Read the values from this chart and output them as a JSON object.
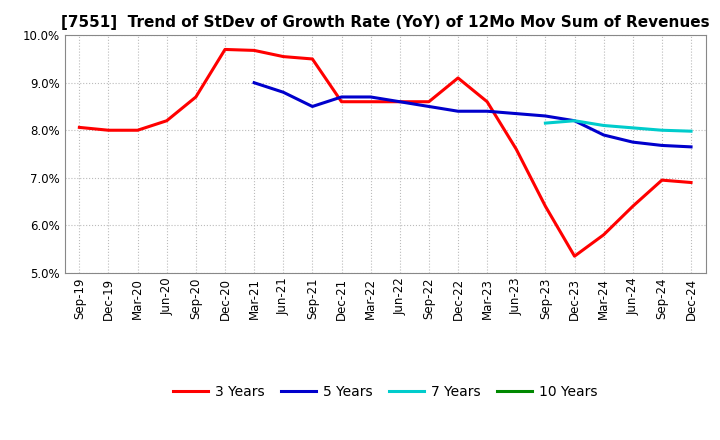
{
  "title": "[7551]  Trend of StDev of Growth Rate (YoY) of 12Mo Mov Sum of Revenues",
  "ylim": [
    0.05,
    0.1
  ],
  "yticks": [
    0.05,
    0.06,
    0.07,
    0.08,
    0.09,
    0.1
  ],
  "background_color": "#ffffff",
  "grid_color": "#bbbbbb",
  "x_labels": [
    "Sep-19",
    "Dec-19",
    "Mar-20",
    "Jun-20",
    "Sep-20",
    "Dec-20",
    "Mar-21",
    "Jun-21",
    "Sep-21",
    "Dec-21",
    "Mar-22",
    "Jun-22",
    "Sep-22",
    "Dec-22",
    "Mar-23",
    "Jun-23",
    "Sep-23",
    "Dec-23",
    "Mar-24",
    "Jun-24",
    "Sep-24",
    "Dec-24"
  ],
  "series": [
    {
      "label": "3 Years",
      "color": "#ff0000",
      "linewidth": 2.2,
      "values": [
        0.0806,
        0.08,
        0.08,
        0.082,
        0.087,
        0.097,
        0.0968,
        0.0955,
        0.095,
        0.086,
        0.086,
        0.086,
        0.086,
        0.091,
        0.086,
        0.076,
        0.064,
        0.0535,
        0.058,
        0.064,
        0.0695,
        0.069
      ]
    },
    {
      "label": "5 Years",
      "color": "#0000cc",
      "linewidth": 2.2,
      "values": [
        null,
        null,
        null,
        null,
        null,
        null,
        0.09,
        0.088,
        0.085,
        0.087,
        0.087,
        0.086,
        0.085,
        0.084,
        0.084,
        0.0835,
        0.083,
        0.082,
        0.079,
        0.0775,
        0.0768,
        0.0765
      ]
    },
    {
      "label": "7 Years",
      "color": "#00cccc",
      "linewidth": 2.2,
      "values": [
        null,
        null,
        null,
        null,
        null,
        null,
        null,
        null,
        null,
        null,
        null,
        null,
        null,
        null,
        null,
        null,
        0.0815,
        0.082,
        0.081,
        0.0805,
        0.08,
        0.0798
      ]
    },
    {
      "label": "10 Years",
      "color": "#008800",
      "linewidth": 2.2,
      "values": [
        null,
        null,
        null,
        null,
        null,
        null,
        null,
        null,
        null,
        null,
        null,
        null,
        null,
        null,
        null,
        null,
        null,
        null,
        null,
        null,
        null,
        null
      ]
    }
  ],
  "title_fontsize": 11,
  "tick_fontsize": 8.5,
  "legend_fontsize": 10
}
